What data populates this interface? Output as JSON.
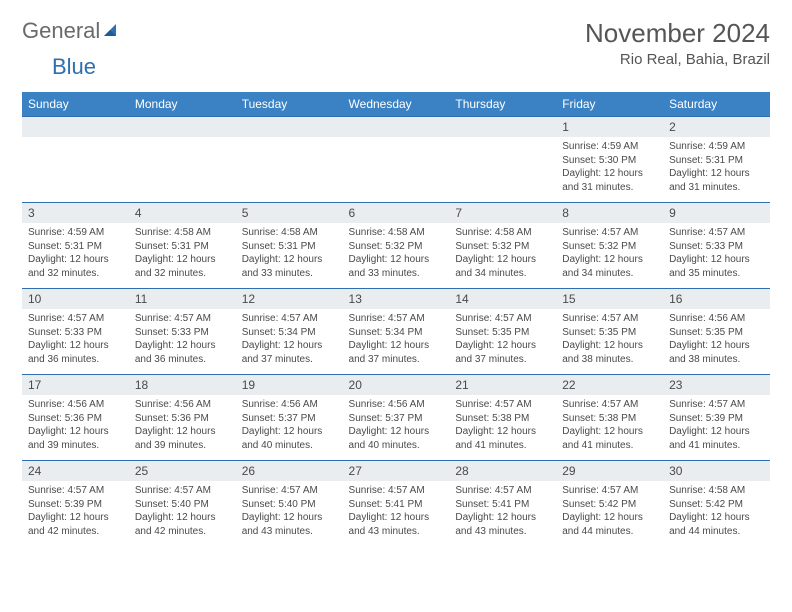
{
  "logo": {
    "word1": "General",
    "word2": "Blue"
  },
  "title": "November 2024",
  "location": "Rio Real, Bahia, Brazil",
  "colors": {
    "header_bg": "#3a82c4",
    "header_text": "#ffffff",
    "daynum_bg": "#e9edef",
    "rule": "#2f6fb0",
    "body_text": "#4a4a4a",
    "title_text": "#555555",
    "logo_gray": "#6a6a6a",
    "logo_blue": "#2f6fb0",
    "page_bg": "#ffffff"
  },
  "weekdays": [
    "Sunday",
    "Monday",
    "Tuesday",
    "Wednesday",
    "Thursday",
    "Friday",
    "Saturday"
  ],
  "grid": [
    [
      {
        "n": "",
        "lines": []
      },
      {
        "n": "",
        "lines": []
      },
      {
        "n": "",
        "lines": []
      },
      {
        "n": "",
        "lines": []
      },
      {
        "n": "",
        "lines": []
      },
      {
        "n": "1",
        "lines": [
          "Sunrise: 4:59 AM",
          "Sunset: 5:30 PM",
          "Daylight: 12 hours and 31 minutes."
        ]
      },
      {
        "n": "2",
        "lines": [
          "Sunrise: 4:59 AM",
          "Sunset: 5:31 PM",
          "Daylight: 12 hours and 31 minutes."
        ]
      }
    ],
    [
      {
        "n": "3",
        "lines": [
          "Sunrise: 4:59 AM",
          "Sunset: 5:31 PM",
          "Daylight: 12 hours and 32 minutes."
        ]
      },
      {
        "n": "4",
        "lines": [
          "Sunrise: 4:58 AM",
          "Sunset: 5:31 PM",
          "Daylight: 12 hours and 32 minutes."
        ]
      },
      {
        "n": "5",
        "lines": [
          "Sunrise: 4:58 AM",
          "Sunset: 5:31 PM",
          "Daylight: 12 hours and 33 minutes."
        ]
      },
      {
        "n": "6",
        "lines": [
          "Sunrise: 4:58 AM",
          "Sunset: 5:32 PM",
          "Daylight: 12 hours and 33 minutes."
        ]
      },
      {
        "n": "7",
        "lines": [
          "Sunrise: 4:58 AM",
          "Sunset: 5:32 PM",
          "Daylight: 12 hours and 34 minutes."
        ]
      },
      {
        "n": "8",
        "lines": [
          "Sunrise: 4:57 AM",
          "Sunset: 5:32 PM",
          "Daylight: 12 hours and 34 minutes."
        ]
      },
      {
        "n": "9",
        "lines": [
          "Sunrise: 4:57 AM",
          "Sunset: 5:33 PM",
          "Daylight: 12 hours and 35 minutes."
        ]
      }
    ],
    [
      {
        "n": "10",
        "lines": [
          "Sunrise: 4:57 AM",
          "Sunset: 5:33 PM",
          "Daylight: 12 hours and 36 minutes."
        ]
      },
      {
        "n": "11",
        "lines": [
          "Sunrise: 4:57 AM",
          "Sunset: 5:33 PM",
          "Daylight: 12 hours and 36 minutes."
        ]
      },
      {
        "n": "12",
        "lines": [
          "Sunrise: 4:57 AM",
          "Sunset: 5:34 PM",
          "Daylight: 12 hours and 37 minutes."
        ]
      },
      {
        "n": "13",
        "lines": [
          "Sunrise: 4:57 AM",
          "Sunset: 5:34 PM",
          "Daylight: 12 hours and 37 minutes."
        ]
      },
      {
        "n": "14",
        "lines": [
          "Sunrise: 4:57 AM",
          "Sunset: 5:35 PM",
          "Daylight: 12 hours and 37 minutes."
        ]
      },
      {
        "n": "15",
        "lines": [
          "Sunrise: 4:57 AM",
          "Sunset: 5:35 PM",
          "Daylight: 12 hours and 38 minutes."
        ]
      },
      {
        "n": "16",
        "lines": [
          "Sunrise: 4:56 AM",
          "Sunset: 5:35 PM",
          "Daylight: 12 hours and 38 minutes."
        ]
      }
    ],
    [
      {
        "n": "17",
        "lines": [
          "Sunrise: 4:56 AM",
          "Sunset: 5:36 PM",
          "Daylight: 12 hours and 39 minutes."
        ]
      },
      {
        "n": "18",
        "lines": [
          "Sunrise: 4:56 AM",
          "Sunset: 5:36 PM",
          "Daylight: 12 hours and 39 minutes."
        ]
      },
      {
        "n": "19",
        "lines": [
          "Sunrise: 4:56 AM",
          "Sunset: 5:37 PM",
          "Daylight: 12 hours and 40 minutes."
        ]
      },
      {
        "n": "20",
        "lines": [
          "Sunrise: 4:56 AM",
          "Sunset: 5:37 PM",
          "Daylight: 12 hours and 40 minutes."
        ]
      },
      {
        "n": "21",
        "lines": [
          "Sunrise: 4:57 AM",
          "Sunset: 5:38 PM",
          "Daylight: 12 hours and 41 minutes."
        ]
      },
      {
        "n": "22",
        "lines": [
          "Sunrise: 4:57 AM",
          "Sunset: 5:38 PM",
          "Daylight: 12 hours and 41 minutes."
        ]
      },
      {
        "n": "23",
        "lines": [
          "Sunrise: 4:57 AM",
          "Sunset: 5:39 PM",
          "Daylight: 12 hours and 41 minutes."
        ]
      }
    ],
    [
      {
        "n": "24",
        "lines": [
          "Sunrise: 4:57 AM",
          "Sunset: 5:39 PM",
          "Daylight: 12 hours and 42 minutes."
        ]
      },
      {
        "n": "25",
        "lines": [
          "Sunrise: 4:57 AM",
          "Sunset: 5:40 PM",
          "Daylight: 12 hours and 42 minutes."
        ]
      },
      {
        "n": "26",
        "lines": [
          "Sunrise: 4:57 AM",
          "Sunset: 5:40 PM",
          "Daylight: 12 hours and 43 minutes."
        ]
      },
      {
        "n": "27",
        "lines": [
          "Sunrise: 4:57 AM",
          "Sunset: 5:41 PM",
          "Daylight: 12 hours and 43 minutes."
        ]
      },
      {
        "n": "28",
        "lines": [
          "Sunrise: 4:57 AM",
          "Sunset: 5:41 PM",
          "Daylight: 12 hours and 43 minutes."
        ]
      },
      {
        "n": "29",
        "lines": [
          "Sunrise: 4:57 AM",
          "Sunset: 5:42 PM",
          "Daylight: 12 hours and 44 minutes."
        ]
      },
      {
        "n": "30",
        "lines": [
          "Sunrise: 4:58 AM",
          "Sunset: 5:42 PM",
          "Daylight: 12 hours and 44 minutes."
        ]
      }
    ]
  ]
}
